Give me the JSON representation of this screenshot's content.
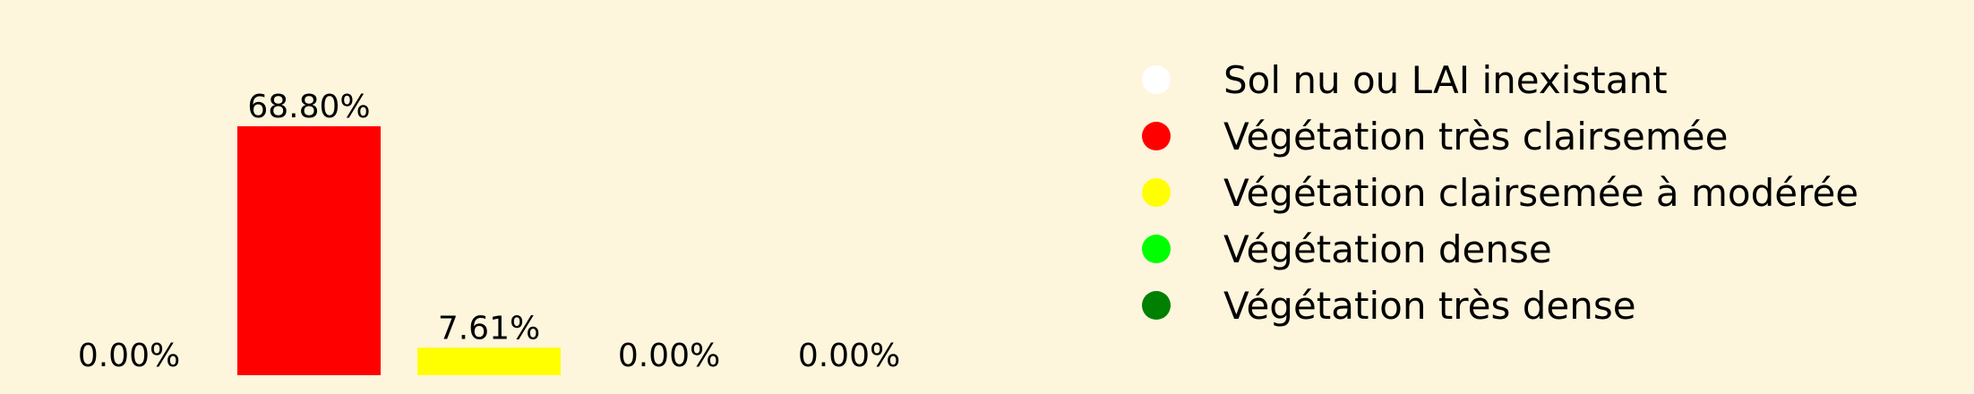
{
  "chart_data": {
    "type": "bar",
    "categories": [
      "Sol nu ou LAI inexistant",
      "Végétation très clairsemée",
      "Végétation clairsemée à modérée",
      "Végétation dense",
      "Végétation très dense"
    ],
    "values": [
      0.0,
      68.8,
      7.61,
      0.0,
      0.0
    ],
    "value_labels": [
      "0.00%",
      "68.80%",
      "7.61%",
      "0.00%",
      "0.00%"
    ],
    "colors": [
      "#ffffff",
      "#ff0000",
      "#ffff00",
      "#00ff00",
      "#008000"
    ],
    "title": "",
    "xlabel": "",
    "ylabel": "",
    "ylim": [
      0,
      70
    ],
    "grid": false,
    "axes_visible": false,
    "legend": {
      "placement": "right",
      "entries": [
        {
          "label": "Sol nu ou LAI inexistant",
          "color": "#ffffff"
        },
        {
          "label": "Végétation très clairsemée",
          "color": "#ff0000"
        },
        {
          "label": "Végétation clairsemée à modérée",
          "color": "#ffff00"
        },
        {
          "label": "Végétation dense",
          "color": "#00ff00"
        },
        {
          "label": "Végétation très dense",
          "color": "#008000"
        }
      ]
    }
  },
  "colors": {
    "background": "#fdf6dc"
  }
}
